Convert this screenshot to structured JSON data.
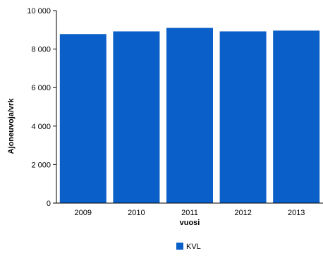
{
  "chart_data": {
    "type": "bar",
    "categories": [
      "2009",
      "2010",
      "2011",
      "2012",
      "2013"
    ],
    "series": [
      {
        "name": "KVL",
        "values": [
          8780,
          8920,
          9100,
          8920,
          8960
        ],
        "color": "#0a5fc8"
      }
    ],
    "xlabel": "vuosi",
    "ylabel": "Ajoneuvoja/vrk",
    "ylim": [
      0,
      10000
    ],
    "yticks": [
      "0",
      "2 000",
      "4 000",
      "6 000",
      "8 000",
      "10 000"
    ],
    "grid": false,
    "legend_position": "bottom-center"
  }
}
